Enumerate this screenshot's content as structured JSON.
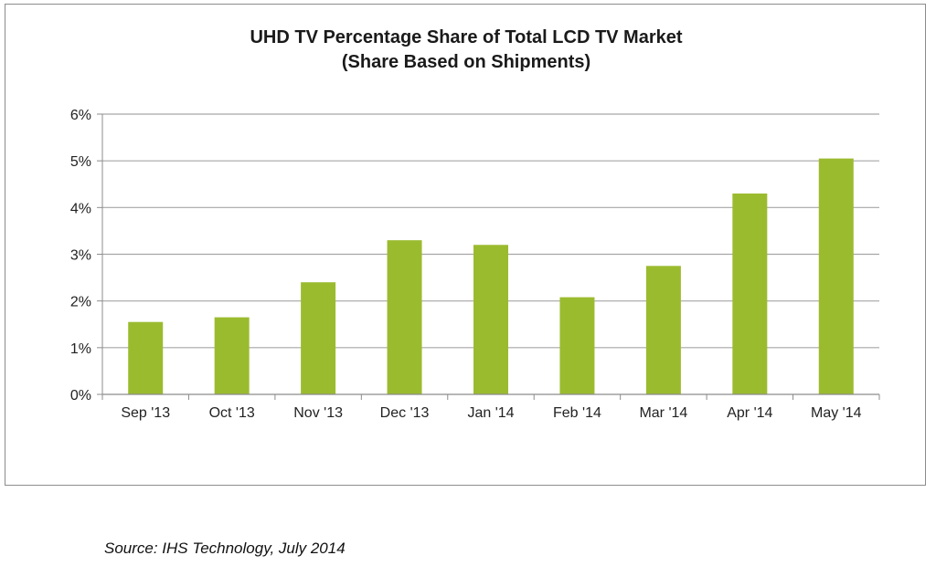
{
  "chart_data": {
    "type": "bar",
    "title": [
      "UHD  TV Percentage Share of Total LCD TV Market",
      "(Share Based on Shipments)"
    ],
    "categories": [
      "Sep '13",
      "Oct '13",
      "Nov '13",
      "Dec '13",
      "Jan '14",
      "Feb '14",
      "Mar '14",
      "Apr '14",
      "May '14"
    ],
    "values": [
      1.55,
      1.65,
      2.4,
      3.3,
      3.2,
      2.08,
      2.75,
      4.3,
      5.05
    ],
    "ylim": [
      0,
      6
    ],
    "yticks": [
      0,
      1,
      2,
      3,
      4,
      5,
      6
    ],
    "ytick_labels": [
      "0%",
      "1%",
      "2%",
      "3%",
      "4%",
      "5%",
      "6%"
    ],
    "grid": true,
    "bar_color": "#9bbb2f",
    "gridline_color": "#a6a6a6"
  },
  "source": "Source: IHS Technology, July 2014"
}
